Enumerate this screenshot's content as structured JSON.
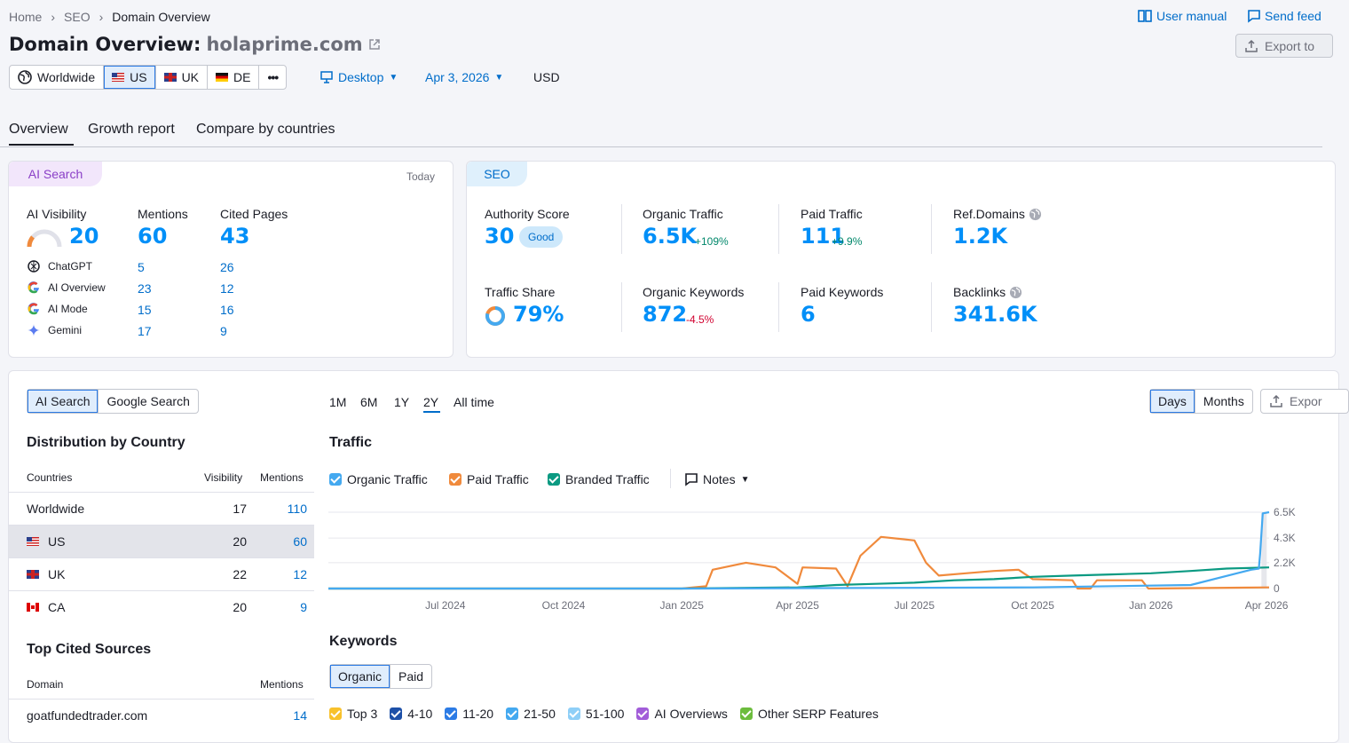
{
  "breadcrumb": {
    "home": "Home",
    "seo": "SEO",
    "current": "Domain Overview"
  },
  "header_links": {
    "user_manual": "User manual",
    "send_feedback": "Send feed"
  },
  "title": {
    "prefix": "Domain Overview:",
    "domain": "holaprime.com"
  },
  "export_label": "Export to",
  "regions": {
    "worldwide": "Worldwide",
    "us": "US",
    "uk": "UK",
    "de": "DE",
    "more": "•••"
  },
  "filters": {
    "device": "Desktop",
    "date": "Apr 3, 2026",
    "currency": "USD"
  },
  "tabs": [
    "Overview",
    "Growth report",
    "Compare by countries"
  ],
  "ai_card": {
    "badge": "AI Search",
    "today": "Today",
    "visibility_label": "AI Visibility",
    "visibility_value": "20",
    "mentions_label": "Mentions",
    "mentions_value": "60",
    "cited_label": "Cited Pages",
    "cited_value": "43",
    "rows": [
      {
        "name": "ChatGPT",
        "mentions": "5",
        "cited": "26"
      },
      {
        "name": "AI Overview",
        "mentions": "23",
        "cited": "12"
      },
      {
        "name": "AI Mode",
        "mentions": "15",
        "cited": "16"
      },
      {
        "name": "Gemini",
        "mentions": "17",
        "cited": "9"
      }
    ]
  },
  "seo_card": {
    "badge": "SEO",
    "authority_label": "Authority Score",
    "authority_value": "30",
    "authority_badge": "Good",
    "organic_traffic_label": "Organic Traffic",
    "organic_traffic_value": "6.5K",
    "organic_traffic_delta": "+109%",
    "paid_traffic_label": "Paid Traffic",
    "paid_traffic_value": "111",
    "paid_traffic_delta": "+9.9%",
    "ref_domains_label": "Ref.Domains",
    "ref_domains_value": "1.2K",
    "traffic_share_label": "Traffic Share",
    "traffic_share_value": "79%",
    "organic_keywords_label": "Organic Keywords",
    "organic_keywords_value": "872",
    "organic_keywords_delta": "-4.5%",
    "paid_keywords_label": "Paid Keywords",
    "paid_keywords_value": "6",
    "backlinks_label": "Backlinks",
    "backlinks_value": "341.6K"
  },
  "left_panel": {
    "toggle": [
      "AI Search",
      "Google Search"
    ],
    "dist_title": "Distribution by Country",
    "cols": {
      "countries": "Countries",
      "visibility": "Visibility",
      "mentions": "Mentions"
    },
    "rows": [
      {
        "name": "Worldwide",
        "visibility": "17",
        "mentions": "110"
      },
      {
        "name": "US",
        "visibility": "20",
        "mentions": "60"
      },
      {
        "name": "UK",
        "visibility": "22",
        "mentions": "12"
      },
      {
        "name": "CA",
        "visibility": "20",
        "mentions": "9"
      }
    ],
    "sources_title": "Top Cited Sources",
    "sources_cols": {
      "domain": "Domain",
      "mentions": "Mentions"
    },
    "sources_rows": [
      {
        "domain": "goatfundedtrader.com",
        "mentions": "14"
      }
    ]
  },
  "ranges": [
    "1M",
    "6M",
    "1Y",
    "2Y",
    "All time"
  ],
  "granularity": [
    "Days",
    "Months"
  ],
  "export_short": "Expor",
  "traffic_title": "Traffic",
  "legend": {
    "organic": "Organic Traffic",
    "paid": "Paid Traffic",
    "branded": "Branded Traffic",
    "notes": "Notes"
  },
  "colors": {
    "organic": "#44a9f0",
    "paid": "#f08a3c",
    "branded": "#0b9a82"
  },
  "chart_data": {
    "type": "line",
    "x_ticks": [
      "Jul 2024",
      "Oct 2024",
      "Jan 2025",
      "Apr 2025",
      "Jul 2025",
      "Oct 2025",
      "Jan 2026",
      "Apr 2026"
    ],
    "y_ticks": [
      "6.5K",
      "4.3K",
      "2.2K",
      "0"
    ],
    "ylim": [
      0,
      6500
    ],
    "x_range": [
      "2024-04-01",
      "2026-04-03"
    ],
    "series": [
      {
        "name": "Organic Traffic",
        "points": [
          [
            "2024-04-01",
            0
          ],
          [
            "2025-01-15",
            0
          ],
          [
            "2025-10-01",
            100
          ],
          [
            "2026-02-01",
            300
          ],
          [
            "2026-03-20",
            1600
          ],
          [
            "2026-03-26",
            1700
          ],
          [
            "2026-03-27",
            3000
          ],
          [
            "2026-03-29",
            6400
          ],
          [
            "2026-04-03",
            6500
          ]
        ]
      },
      {
        "name": "Paid Traffic",
        "points": [
          [
            "2024-04-01",
            0
          ],
          [
            "2025-01-01",
            0
          ],
          [
            "2025-01-20",
            200
          ],
          [
            "2025-01-25",
            1600
          ],
          [
            "2025-02-20",
            2200
          ],
          [
            "2025-03-15",
            1800
          ],
          [
            "2025-04-01",
            400
          ],
          [
            "2025-04-05",
            1800
          ],
          [
            "2025-05-01",
            1700
          ],
          [
            "2025-05-10",
            200
          ],
          [
            "2025-05-20",
            2800
          ],
          [
            "2025-06-05",
            4400
          ],
          [
            "2025-07-01",
            4100
          ],
          [
            "2025-07-10",
            2200
          ],
          [
            "2025-07-20",
            1100
          ],
          [
            "2025-08-10",
            1300
          ],
          [
            "2025-09-01",
            1500
          ],
          [
            "2025-09-20",
            1600
          ],
          [
            "2025-10-01",
            800
          ],
          [
            "2025-11-01",
            700
          ],
          [
            "2025-11-05",
            0
          ],
          [
            "2025-11-15",
            0
          ],
          [
            "2025-11-20",
            700
          ],
          [
            "2025-12-25",
            700
          ],
          [
            "2025-12-30",
            0
          ],
          [
            "2026-04-03",
            100
          ]
        ]
      },
      {
        "name": "Branded Traffic",
        "points": [
          [
            "2024-04-01",
            0
          ],
          [
            "2025-01-01",
            0
          ],
          [
            "2025-04-01",
            100
          ],
          [
            "2025-05-01",
            300
          ],
          [
            "2025-06-01",
            400
          ],
          [
            "2025-07-01",
            500
          ],
          [
            "2025-08-01",
            700
          ],
          [
            "2025-09-01",
            800
          ],
          [
            "2025-10-01",
            1000
          ],
          [
            "2025-11-01",
            1100
          ],
          [
            "2025-12-01",
            1200
          ],
          [
            "2026-01-01",
            1300
          ],
          [
            "2026-02-01",
            1500
          ],
          [
            "2026-03-01",
            1700
          ],
          [
            "2026-04-03",
            1800
          ]
        ]
      }
    ]
  },
  "keywords_title": "Keywords",
  "keywords_toggle": [
    "Organic",
    "Paid"
  ],
  "keyword_filters": [
    {
      "label": "Top 3",
      "color": "#f8c12b"
    },
    {
      "label": "4-10",
      "color": "#1d50a8"
    },
    {
      "label": "11-20",
      "color": "#2c7be5"
    },
    {
      "label": "21-50",
      "color": "#44a9f0"
    },
    {
      "label": "51-100",
      "color": "#8fcff7"
    },
    {
      "label": "AI Overviews",
      "color": "#a25dd9"
    },
    {
      "label": "Other SERP Features",
      "color": "#6cbc3d"
    }
  ]
}
